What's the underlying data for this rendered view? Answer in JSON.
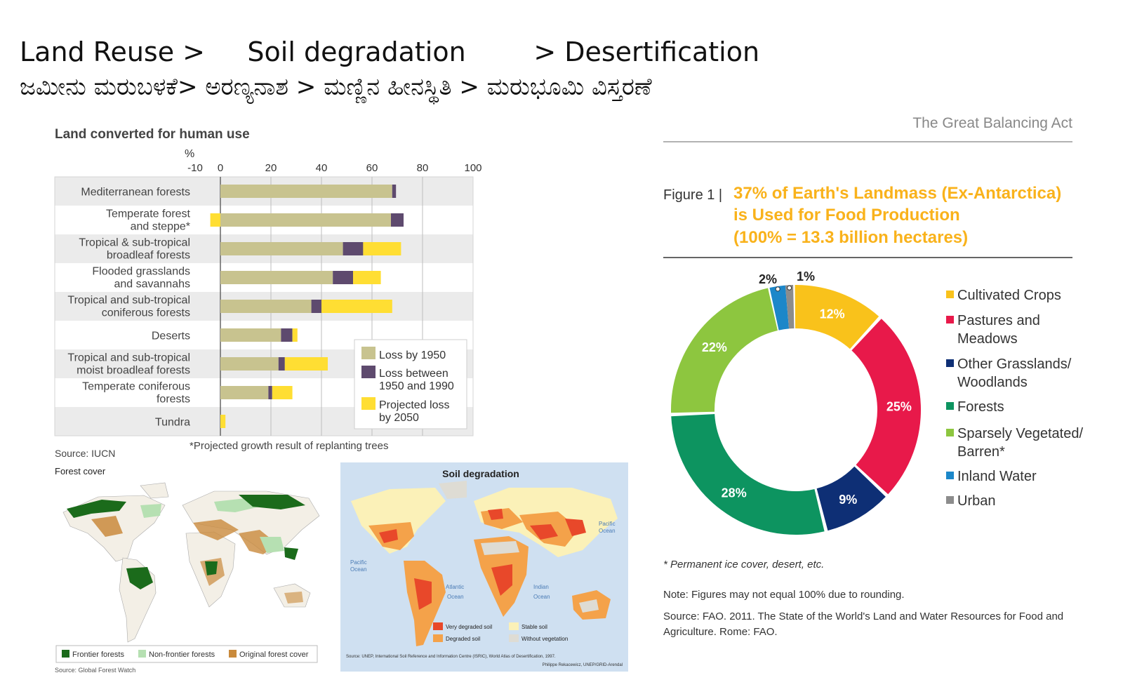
{
  "header": {
    "title_en": "Land Reuse >     Soil degradation        > Desertification",
    "title_kn": "ಜಮೀನು ಮರುಬಳಕೆ> ಅರಣ್ಯನಾಶ > ಮಣ್ಣಿನ ಹೀನಸ್ಥಿತಿ > ಮರುಭೂಮಿ ವಿಸ್ತರಣೆ"
  },
  "colors": {
    "loss1950": "#c8c38f",
    "loss1990": "#5e4a6e",
    "proj2050": "#ffde33",
    "crops": "#f9c21b",
    "pastures": "#e8194a",
    "grass": "#0e2f75",
    "forest": "#0d9460",
    "sparse": "#8dc63f",
    "water": "#1c87c9",
    "urban": "#8c8c8c",
    "orange_title": "#f9b21b"
  },
  "chart_data": [
    {
      "type": "bar",
      "title": "Land converted for human use",
      "xlabel": "%",
      "xlim": [
        -10,
        100
      ],
      "ticks": [
        "-10",
        "0",
        "20",
        "40",
        "60",
        "80",
        "100"
      ],
      "categories": [
        [
          "Mediterranean forests"
        ],
        [
          "Temperate forest",
          "and steppe*"
        ],
        [
          "Tropical & sub-tropical",
          "broadleaf forests"
        ],
        [
          "Flooded grasslands",
          "and savannahs"
        ],
        [
          "Tropical and sub-tropical",
          "coniferous forests"
        ],
        [
          "Deserts"
        ],
        [
          "Tropical and sub-tropical",
          "moist broadleaf forests"
        ],
        [
          "Temperate coniferous",
          "forests"
        ],
        [
          "Tundra"
        ]
      ],
      "series": [
        {
          "name": "Loss by 1950",
          "values": [
            68,
            67.5,
            48.5,
            44.5,
            36,
            24,
            23,
            19,
            0
          ]
        },
        {
          "name": "Loss between 1950 and 1990",
          "values": [
            1.5,
            5,
            8,
            8,
            4,
            4.5,
            2.5,
            1.5,
            0
          ]
        },
        {
          "name": "Projected loss by 2050",
          "values": [
            0,
            -4,
            15,
            11,
            28,
            2,
            17,
            8,
            2
          ]
        }
      ],
      "legend": [
        [
          "Loss by 1950"
        ],
        [
          "Loss between",
          "1950 and 1990"
        ],
        [
          "Projected loss",
          "by 2050"
        ]
      ],
      "source": "Source: IUCN",
      "note": "*Projected growth result of replanting trees"
    },
    {
      "type": "pie",
      "figure_label": "Figure 1 |",
      "title_lines": [
        "37% of Earth's Landmass (Ex-Antarctica)",
        "is Used for Food Production",
        "(100% = 13.3 billion hectares)"
      ],
      "header": "The Great Balancing Act",
      "slices": [
        {
          "name": "Cultivated Crops",
          "value": 12,
          "label": "12%"
        },
        {
          "name": "Pastures and Meadows",
          "value": 25,
          "label": "25%"
        },
        {
          "name": "Other Grasslands/ Woodlands",
          "value": 9,
          "label": "9%"
        },
        {
          "name": "Forests",
          "value": 28,
          "label": "28%"
        },
        {
          "name": "Sparsely Vegetated/ Barren*",
          "value": 22,
          "label": "22%"
        },
        {
          "name": "Inland Water",
          "value": 2,
          "label": "2%"
        },
        {
          "name": "Urban",
          "value": 1,
          "label": "1%"
        }
      ],
      "legend": [
        [
          "Cultivated Crops"
        ],
        [
          "Pastures and",
          "Meadows"
        ],
        [
          "Other Grasslands/",
          "Woodlands"
        ],
        [
          "Forests"
        ],
        [
          "Sparsely Vegetated/",
          "Barren*"
        ],
        [
          "Inland Water"
        ],
        [
          "Urban"
        ]
      ],
      "footnote": "* Permanent ice cover, desert, etc.",
      "note": "Note: Figures may not equal 100% due to rounding.",
      "source_lines": [
        "Source: FAO. 2011. The State of the World's Land and Water Resources for Food and",
        "Agriculture. Rome: FAO."
      ]
    }
  ],
  "maps": {
    "forest": {
      "title": "Forest cover",
      "legend": [
        "Frontier forests",
        "Non-frontier forests",
        "Original forest cover"
      ],
      "source": "Source: Global Forest Watch"
    },
    "soil": {
      "title": "Soil degradation",
      "oceans": [
        "Pacific",
        "Ocean",
        "Pacific",
        "Ocean",
        "Atlantic",
        "Ocean",
        "Indian",
        "Ocean"
      ],
      "legend": [
        "Very degraded soil",
        "Stable soil",
        "Degraded soil",
        "Without vegetation"
      ],
      "source": "Source: UNEP, International Soil Reference and Information Centre (ISRIC), World Atlas of Desertification, 1997.",
      "credit": "Philippe Rekacewicz, UNEP/GRID-Arendal"
    }
  }
}
